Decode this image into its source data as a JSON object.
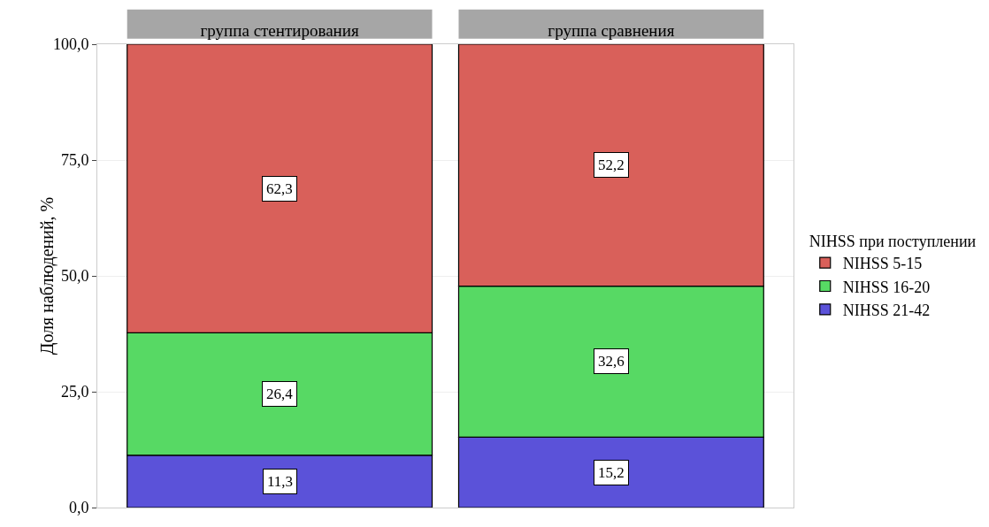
{
  "chart_data": {
    "type": "bar",
    "stacked": true,
    "ylabel": "Доля наблюдений, %",
    "legend_title": "NIHSS при поступлении",
    "categories": [
      "группа стентирования",
      "группа сравнения"
    ],
    "series": [
      {
        "name": "NIHSS 21-42",
        "color": "#5b52d9",
        "values": [
          11.3,
          15.2
        ],
        "value_labels": [
          "11,3",
          "15,2"
        ]
      },
      {
        "name": "NIHSS 16-20",
        "color": "#57d964",
        "values": [
          26.4,
          32.6
        ],
        "value_labels": [
          "26,4",
          "32,6"
        ]
      },
      {
        "name": "NIHSS 5-15",
        "color": "#d9605a",
        "values": [
          62.3,
          52.2
        ],
        "value_labels": [
          "62,3",
          "52,2"
        ]
      }
    ],
    "ylim": [
      0,
      100
    ],
    "yticks": [
      {
        "value": 0,
        "label": "0,0"
      },
      {
        "value": 25,
        "label": "25,0"
      },
      {
        "value": 50,
        "label": "50,0"
      },
      {
        "value": 75,
        "label": "75,0"
      },
      {
        "value": 100,
        "label": "100,0"
      }
    ],
    "grid": true,
    "legend": "right"
  }
}
